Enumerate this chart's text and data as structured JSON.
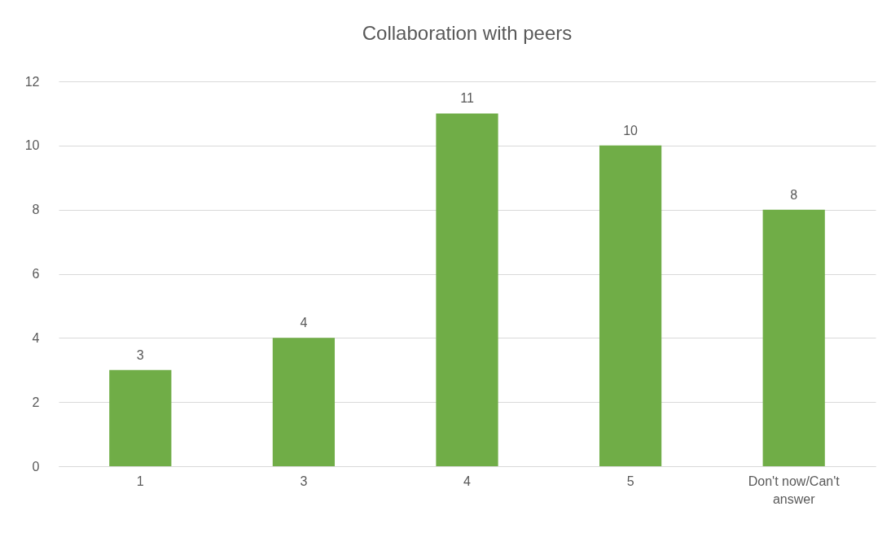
{
  "chart_data": {
    "type": "bar",
    "title": "Collaboration with peers",
    "categories": [
      "1",
      "3",
      "4",
      "5",
      "Don't now/Can't answer"
    ],
    "values": [
      3,
      4,
      11,
      10,
      8
    ],
    "color": "#70ad47",
    "ylim": [
      0,
      12
    ],
    "yticks": [
      0,
      2,
      4,
      6,
      8,
      10,
      12
    ],
    "grid": "y",
    "data_labels": true
  }
}
